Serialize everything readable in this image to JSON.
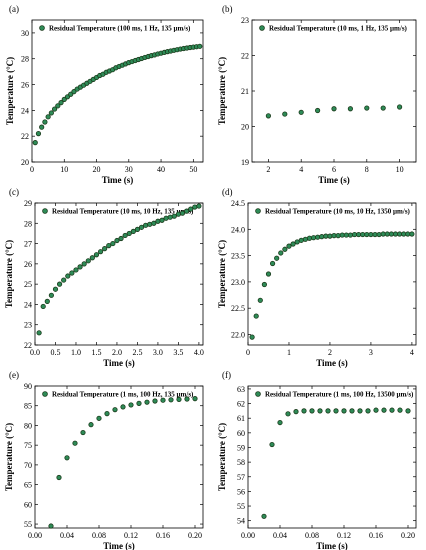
{
  "figure": {
    "panels": [
      {
        "id": "a",
        "label": "(a)"
      },
      {
        "id": "b",
        "label": "(b)"
      },
      {
        "id": "c",
        "label": "(c)"
      },
      {
        "id": "d",
        "label": "(d)"
      },
      {
        "id": "e",
        "label": "(e)"
      },
      {
        "id": "f",
        "label": "(f)"
      }
    ]
  },
  "colors": {
    "marker_fill": "#2e8b57",
    "marker_edge": "#1b3a1b",
    "axis": "#000000"
  },
  "chart_data": [
    {
      "id": "a",
      "type": "scatter",
      "xlabel": "Time (s)",
      "ylabel": "Temperature (°C)",
      "xlim": [
        0,
        53
      ],
      "ylim": [
        20,
        31
      ],
      "xticks": [
        0,
        10,
        20,
        30,
        40,
        50
      ],
      "xticklabels": [
        "0",
        "10",
        "20",
        "30",
        "40",
        "50"
      ],
      "yticks": [
        20,
        22,
        24,
        26,
        28,
        30
      ],
      "yticklabels": [
        "20",
        "22",
        "24",
        "26",
        "28",
        "30"
      ],
      "legend_position": "top-left",
      "series": [
        {
          "name": "Residual Temperature (100 ms, 1 Hz, 135 µm/s)",
          "x": [
            1,
            2,
            3,
            4,
            5,
            6,
            7,
            8,
            9,
            10,
            11,
            12,
            13,
            14,
            15,
            16,
            17,
            18,
            19,
            20,
            21,
            22,
            23,
            24,
            25,
            26,
            27,
            28,
            29,
            30,
            31,
            32,
            33,
            34,
            35,
            36,
            37,
            38,
            39,
            40,
            41,
            42,
            43,
            44,
            45,
            46,
            47,
            48,
            49,
            50,
            51,
            52
          ],
          "y": [
            21.5,
            22.2,
            22.7,
            23.1,
            23.5,
            23.8,
            24.1,
            24.35,
            24.6,
            24.85,
            25.05,
            25.25,
            25.45,
            25.65,
            25.8,
            25.95,
            26.1,
            26.25,
            26.4,
            26.55,
            26.7,
            26.8,
            26.95,
            27.05,
            27.15,
            27.3,
            27.4,
            27.5,
            27.6,
            27.7,
            27.78,
            27.86,
            27.94,
            28.02,
            28.1,
            28.17,
            28.24,
            28.3,
            28.37,
            28.43,
            28.49,
            28.55,
            28.6,
            28.65,
            28.7,
            28.75,
            28.79,
            28.83,
            28.87,
            28.9,
            28.93,
            28.96
          ]
        }
      ]
    },
    {
      "id": "b",
      "type": "scatter",
      "xlabel": "Time (s)",
      "ylabel": "Temperature (°C)",
      "xlim": [
        1,
        11
      ],
      "ylim": [
        19,
        23
      ],
      "xticks": [
        2,
        4,
        6,
        8,
        10
      ],
      "xticklabels": [
        "2",
        "4",
        "6",
        "8",
        "10"
      ],
      "yticks": [
        19,
        20,
        21,
        22,
        23
      ],
      "yticklabels": [
        "19",
        "20",
        "21",
        "22",
        "23"
      ],
      "legend_position": "top-left",
      "series": [
        {
          "name": "Residual Temperature (10 ms, 1 Hz, 135 µm/s)",
          "x": [
            2,
            3,
            4,
            5,
            6,
            7,
            8,
            9,
            10
          ],
          "y": [
            20.3,
            20.35,
            20.4,
            20.45,
            20.5,
            20.5,
            20.52,
            20.52,
            20.55
          ]
        }
      ]
    },
    {
      "id": "c",
      "type": "scatter",
      "xlabel": "Time (s)",
      "ylabel": "Temperature (°C)",
      "xlim": [
        0,
        4.1
      ],
      "ylim": [
        22,
        29
      ],
      "xticks": [
        0,
        0.5,
        1,
        1.5,
        2,
        2.5,
        3,
        3.5,
        4
      ],
      "xticklabels": [
        "0.0",
        "0.5",
        "1.0",
        "1.5",
        "2.0",
        "2.5",
        "3.0",
        "3.5",
        "4.0"
      ],
      "yticks": [
        22,
        23,
        24,
        25,
        26,
        27,
        28,
        29
      ],
      "yticklabels": [
        "22",
        "23",
        "24",
        "25",
        "26",
        "27",
        "28",
        "29"
      ],
      "legend_position": "top-left",
      "series": [
        {
          "name": "Residual Temperature (10 ms, 10 Hz, 135 µm/s)",
          "x": [
            0.1,
            0.2,
            0.3,
            0.4,
            0.5,
            0.6,
            0.7,
            0.8,
            0.9,
            1.0,
            1.1,
            1.2,
            1.3,
            1.4,
            1.5,
            1.6,
            1.7,
            1.8,
            1.9,
            2.0,
            2.1,
            2.2,
            2.3,
            2.4,
            2.5,
            2.6,
            2.7,
            2.8,
            2.9,
            3.0,
            3.1,
            3.2,
            3.3,
            3.4,
            3.5,
            3.6,
            3.7,
            3.8,
            3.9,
            4.0
          ],
          "y": [
            22.6,
            23.9,
            24.15,
            24.45,
            24.75,
            25.0,
            25.2,
            25.4,
            25.55,
            25.7,
            25.85,
            26.0,
            26.15,
            26.3,
            26.45,
            26.6,
            26.75,
            26.9,
            27.0,
            27.15,
            27.25,
            27.4,
            27.5,
            27.6,
            27.7,
            27.8,
            27.9,
            27.95,
            28.0,
            28.1,
            28.15,
            28.25,
            28.3,
            28.35,
            28.45,
            28.5,
            28.6,
            28.7,
            28.8,
            28.85
          ]
        }
      ]
    },
    {
      "id": "d",
      "type": "scatter",
      "xlabel": "Time (s)",
      "ylabel": "Temperature (°C)",
      "xlim": [
        0,
        4.1
      ],
      "ylim": [
        21.8,
        24.5
      ],
      "xticks": [
        0,
        1,
        2,
        3,
        4
      ],
      "xticklabels": [
        "0",
        "1",
        "2",
        "3",
        "4"
      ],
      "yticks": [
        22.0,
        22.5,
        23.0,
        23.5,
        24.0,
        24.5
      ],
      "yticklabels": [
        "22.0",
        "22.5",
        "23.0",
        "23.5",
        "24.0",
        "24.5"
      ],
      "legend_position": "top-left",
      "series": [
        {
          "name": "Residual Temperature (10 ms, 10 Hz, 1350 µm/s)",
          "x": [
            0.1,
            0.2,
            0.3,
            0.4,
            0.5,
            0.6,
            0.7,
            0.8,
            0.9,
            1.0,
            1.1,
            1.2,
            1.3,
            1.4,
            1.5,
            1.6,
            1.7,
            1.8,
            1.9,
            2.0,
            2.1,
            2.2,
            2.3,
            2.4,
            2.5,
            2.6,
            2.7,
            2.8,
            2.9,
            3.0,
            3.1,
            3.2,
            3.3,
            3.4,
            3.5,
            3.6,
            3.7,
            3.8,
            3.9,
            4.0
          ],
          "y": [
            21.95,
            22.35,
            22.65,
            22.95,
            23.15,
            23.35,
            23.45,
            23.55,
            23.62,
            23.68,
            23.72,
            23.76,
            23.79,
            23.81,
            23.83,
            23.84,
            23.85,
            23.86,
            23.87,
            23.87,
            23.88,
            23.88,
            23.89,
            23.89,
            23.89,
            23.9,
            23.9,
            23.9,
            23.9,
            23.9,
            23.9,
            23.9,
            23.91,
            23.91,
            23.91,
            23.91,
            23.91,
            23.91,
            23.91,
            23.91
          ]
        }
      ]
    },
    {
      "id": "e",
      "type": "scatter",
      "xlabel": "Time (s)",
      "ylabel": "Temperature (°C)",
      "xlim": [
        0,
        0.21
      ],
      "ylim": [
        54,
        90
      ],
      "xticks": [
        0,
        0.04,
        0.08,
        0.12,
        0.16,
        0.2
      ],
      "xticklabels": [
        "0.00",
        "0.04",
        "0.08",
        "0.12",
        "0.16",
        "0.20"
      ],
      "yticks": [
        55,
        60,
        65,
        70,
        75,
        80,
        85,
        90
      ],
      "yticklabels": [
        "55",
        "60",
        "65",
        "70",
        "75",
        "80",
        "85",
        "90"
      ],
      "legend_position": "top-left",
      "series": [
        {
          "name": "Residual Temperature (1 ms, 100 Hz, 135 µm/s)",
          "x": [
            0.02,
            0.03,
            0.04,
            0.05,
            0.06,
            0.07,
            0.08,
            0.09,
            0.1,
            0.11,
            0.12,
            0.13,
            0.14,
            0.15,
            0.16,
            0.17,
            0.18,
            0.19,
            0.2
          ],
          "y": [
            54.5,
            66.8,
            71.8,
            75.5,
            78.2,
            80.2,
            81.8,
            83.0,
            84.0,
            84.7,
            85.2,
            85.6,
            85.9,
            86.2,
            86.4,
            86.5,
            86.6,
            86.7,
            86.8
          ]
        }
      ]
    },
    {
      "id": "f",
      "type": "scatter",
      "xlabel": "Time (s)",
      "ylabel": "Temperature (°C)",
      "xlim": [
        0,
        0.21
      ],
      "ylim": [
        53.5,
        63.2
      ],
      "xticks": [
        0,
        0.04,
        0.08,
        0.12,
        0.16,
        0.2
      ],
      "xticklabels": [
        "0.00",
        "0.04",
        "0.08",
        "0.12",
        "0.16",
        "0.20"
      ],
      "yticks": [
        54,
        55,
        56,
        57,
        58,
        59,
        60,
        61,
        62,
        63
      ],
      "yticklabels": [
        "54",
        "55",
        "56",
        "57",
        "58",
        "59",
        "60",
        "61",
        "62",
        "63"
      ],
      "legend_position": "top-left",
      "series": [
        {
          "name": "Residual Temperature (1 ms, 100 Hz, 13500 µm/s)",
          "x": [
            0.02,
            0.03,
            0.04,
            0.05,
            0.06,
            0.07,
            0.08,
            0.09,
            0.1,
            0.11,
            0.12,
            0.13,
            0.14,
            0.15,
            0.16,
            0.17,
            0.18,
            0.19,
            0.2
          ],
          "y": [
            54.3,
            59.2,
            60.7,
            61.3,
            61.45,
            61.5,
            61.5,
            61.5,
            61.5,
            61.5,
            61.5,
            61.5,
            61.5,
            61.5,
            61.55,
            61.55,
            61.55,
            61.55,
            61.5
          ]
        }
      ]
    }
  ]
}
